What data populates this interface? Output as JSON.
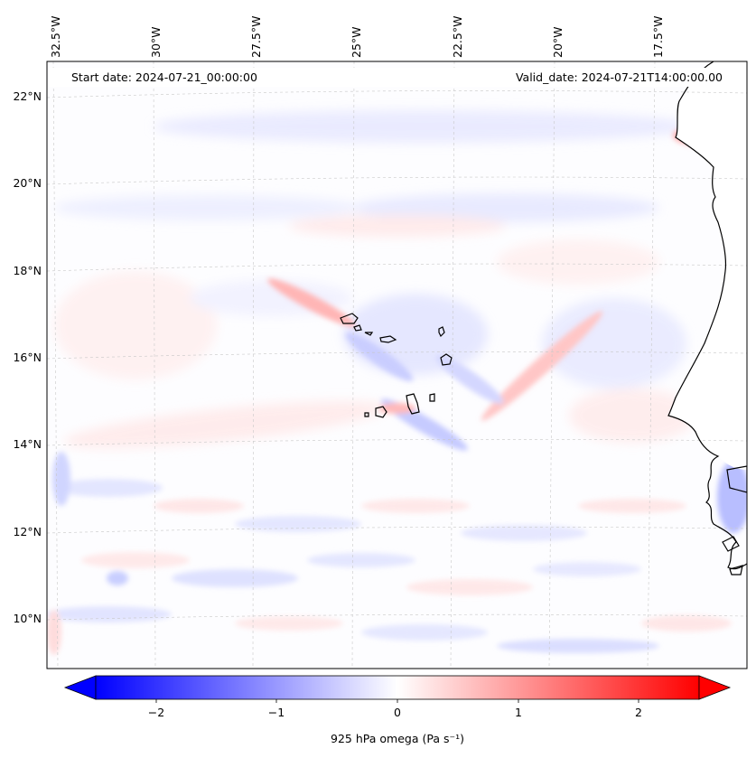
{
  "header": {
    "start_date": "Start date: 2024-07-21_00:00:00",
    "valid_date": "Valid_date: 2024-07-21T14:00:00.00"
  },
  "lon_labels": [
    "32.5°W",
    "30°W",
    "27.5°W",
    "25°W",
    "22.5°W",
    "20°W",
    "17.5°W"
  ],
  "lat_labels": [
    "22°N",
    "20°N",
    "18°N",
    "16°N",
    "14°N",
    "12°N",
    "10°N"
  ],
  "colorbar": {
    "label": "925 hPa omega (Pa s⁻¹)",
    "ticks": [
      "−2",
      "−1",
      "0",
      "1",
      "2"
    ],
    "tick_values": [
      -2,
      -1,
      0,
      1,
      2
    ],
    "range": [
      -2.5,
      2.5
    ],
    "cmap": "bwr",
    "extend": "both",
    "colors": {
      "negative": "#0000ff",
      "zero": "#ffffff",
      "positive": "#ff0000"
    }
  },
  "gridlines": {
    "style": "dashed",
    "color": "#bbbbbb"
  }
}
